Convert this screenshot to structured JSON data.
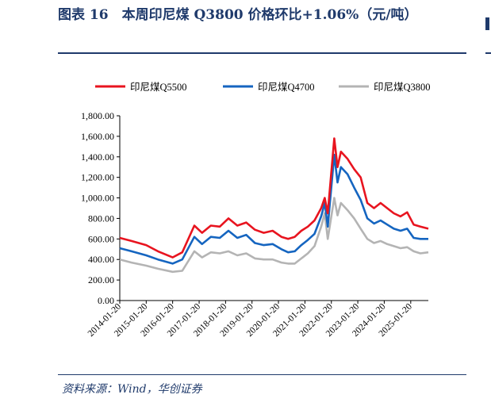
{
  "figure": {
    "title": "图表 16　本周印尼煤 Q3800 价格环比+1.06%（元/吨）",
    "source": "资料来源：Wind，华创证券"
  },
  "colors": {
    "rule": "#1f3a6b",
    "q5500": "#e8141f",
    "q4700": "#1565c0",
    "q3800": "#b4b4b4",
    "axis": "#000000"
  },
  "chart_data": {
    "type": "line",
    "title": "",
    "xlabel": "",
    "ylabel": "",
    "ylim": [
      0,
      1800
    ],
    "y_ticks": [
      0,
      200,
      400,
      600,
      800,
      1000,
      1200,
      1400,
      1600,
      1800
    ],
    "y_tick_labels": [
      "0.00",
      "200.00",
      "400.00",
      "600.00",
      "800.00",
      "1,000.00",
      "1,200.00",
      "1,400.00",
      "1,600.00",
      "1,800.00"
    ],
    "x_ticks": [
      "2014-01-20",
      "2015-01-20",
      "2016-01-20",
      "2017-01-20",
      "2018-01-20",
      "2019-01-20",
      "2020-01-20",
      "2021-01-20",
      "2022-01-20",
      "2023-01-20",
      "2024-01-20",
      "2025-01-20"
    ],
    "x_range": [
      "2014-01-20",
      "2025-09-20"
    ],
    "grid": false,
    "legend": "top",
    "x": [
      "2014-01-20",
      "2014-07-01",
      "2015-01-20",
      "2015-07-01",
      "2016-01-20",
      "2016-06-01",
      "2016-11-15",
      "2017-03-01",
      "2017-07-01",
      "2017-11-01",
      "2018-03-01",
      "2018-07-01",
      "2018-11-01",
      "2019-03-01",
      "2019-07-01",
      "2019-11-01",
      "2020-03-01",
      "2020-06-01",
      "2020-09-01",
      "2020-12-01",
      "2021-03-01",
      "2021-06-01",
      "2021-09-01",
      "2021-10-20",
      "2021-12-01",
      "2022-03-01",
      "2022-04-15",
      "2022-06-01",
      "2022-09-01",
      "2022-12-01",
      "2023-03-01",
      "2023-06-01",
      "2023-09-01",
      "2023-12-01",
      "2024-03-01",
      "2024-06-01",
      "2024-09-01",
      "2024-12-01",
      "2025-03-01",
      "2025-06-01",
      "2025-09-20"
    ],
    "series": [
      {
        "name": "印尼煤Q5500",
        "color": "#e8141f",
        "values": [
          610,
          580,
          540,
          480,
          420,
          470,
          730,
          660,
          730,
          720,
          800,
          730,
          760,
          690,
          660,
          680,
          620,
          600,
          620,
          680,
          720,
          780,
          900,
          1000,
          850,
          1580,
          1300,
          1450,
          1380,
          1280,
          1200,
          950,
          900,
          950,
          900,
          850,
          820,
          860,
          740,
          720,
          700
        ]
      },
      {
        "name": "印尼煤Q4700",
        "color": "#1565c0",
        "values": [
          510,
          480,
          440,
          400,
          360,
          400,
          620,
          550,
          620,
          610,
          680,
          610,
          640,
          560,
          540,
          550,
          500,
          470,
          480,
          540,
          590,
          650,
          820,
          950,
          720,
          1420,
          1150,
          1300,
          1230,
          1100,
          980,
          800,
          750,
          780,
          740,
          700,
          680,
          700,
          610,
          600,
          600
        ]
      },
      {
        "name": "印尼煤Q3800",
        "color": "#b4b4b4",
        "values": [
          400,
          370,
          340,
          310,
          280,
          290,
          480,
          420,
          470,
          460,
          480,
          440,
          460,
          410,
          400,
          400,
          370,
          360,
          360,
          410,
          460,
          530,
          720,
          850,
          600,
          1000,
          830,
          950,
          880,
          800,
          700,
          600,
          560,
          580,
          550,
          530,
          510,
          520,
          480,
          460,
          470
        ]
      }
    ]
  }
}
